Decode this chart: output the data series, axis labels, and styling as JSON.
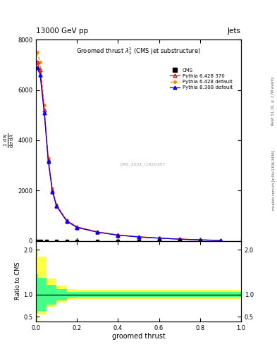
{
  "title": "13000 GeV pp",
  "title_right": "Jets",
  "plot_title": "Groomed thrust $\\lambda_2^1$ (CMS jet substructure)",
  "xlabel": "groomed thrust",
  "ylabel_main": "$\\frac{1}{\\mathrm{d}\\sigma}\\frac{\\mathrm{d}N}{\\mathrm{d}\\lambda}$",
  "ylabel_ratio": "Ratio to CMS",
  "right_label_top": "Rivet 3.1.10, $\\geq$ 2.7M events",
  "right_label_bottom": "mcplots.cern.ch [arXiv:1306.3436]",
  "watermark": "CMS_2021_I1920187",
  "cms_x": [
    0.005,
    0.025,
    0.05,
    0.1,
    0.15,
    0.2,
    0.3,
    0.4,
    0.5,
    0.6,
    0.7,
    0.8
  ],
  "cms_y": [
    0.0,
    0.0,
    0.0,
    0.0,
    0.0,
    0.0,
    0.0,
    0.0,
    0.0,
    0.0,
    0.0,
    0.0
  ],
  "py6_370_x": [
    0.005,
    0.02,
    0.04,
    0.06,
    0.08,
    0.1,
    0.15,
    0.2,
    0.3,
    0.4,
    0.5,
    0.6,
    0.7,
    0.8,
    0.9
  ],
  "py6_370_y": [
    7100,
    6800,
    5200,
    3200,
    2000,
    1400,
    800,
    550,
    350,
    230,
    160,
    110,
    70,
    40,
    15
  ],
  "py6_def_x": [
    0.005,
    0.02,
    0.04,
    0.06,
    0.08,
    0.1,
    0.15,
    0.2,
    0.3,
    0.4,
    0.5,
    0.6,
    0.7,
    0.8,
    0.9
  ],
  "py6_def_y": [
    7500,
    7100,
    5400,
    3300,
    2100,
    1450,
    820,
    560,
    360,
    240,
    165,
    115,
    73,
    43,
    17
  ],
  "py8_def_x": [
    0.005,
    0.02,
    0.04,
    0.06,
    0.08,
    0.1,
    0.15,
    0.2,
    0.3,
    0.4,
    0.5,
    0.6,
    0.7,
    0.8,
    0.9
  ],
  "py8_def_y": [
    6900,
    6600,
    5100,
    3150,
    1950,
    1380,
    780,
    530,
    340,
    225,
    155,
    105,
    67,
    38,
    14
  ],
  "ratio_x_edges": [
    0.0,
    0.01,
    0.05,
    0.1,
    0.15,
    0.2,
    0.3,
    0.4,
    0.5,
    0.6,
    0.7,
    0.8,
    1.0
  ],
  "ratio_yellow_upper": [
    2.0,
    1.85,
    1.35,
    1.2,
    1.12,
    1.1,
    1.1,
    1.1,
    1.1,
    1.1,
    1.1,
    1.1
  ],
  "ratio_yellow_lower": [
    0.35,
    0.55,
    0.72,
    0.82,
    0.88,
    0.9,
    0.9,
    0.9,
    0.9,
    0.9,
    0.9,
    0.9
  ],
  "ratio_green_upper": [
    1.45,
    1.38,
    1.22,
    1.12,
    1.06,
    1.05,
    1.05,
    1.05,
    1.05,
    1.05,
    1.05,
    1.05
  ],
  "ratio_green_lower": [
    0.58,
    0.63,
    0.77,
    0.87,
    0.93,
    0.95,
    0.95,
    0.95,
    0.95,
    0.95,
    0.95,
    0.95
  ],
  "ylim_main": [
    0,
    8000
  ],
  "yticks_main": [
    0,
    2000,
    4000,
    6000,
    8000
  ],
  "ylim_ratio": [
    0.4,
    2.2
  ],
  "yticks_ratio": [
    0.5,
    1.0,
    2.0
  ],
  "color_py6_370": "#ff0000",
  "color_py6_def": "#ff8800",
  "color_py8_def": "#0000ff",
  "color_cms": "#000000",
  "color_yellow": "#ffff44",
  "color_green": "#44ff88",
  "bg_color": "#ffffff"
}
